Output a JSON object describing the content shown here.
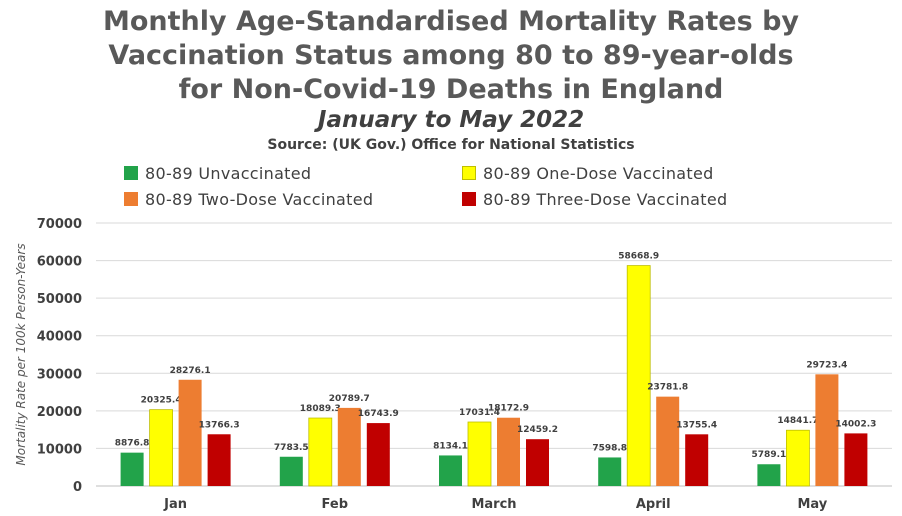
{
  "title_lines": [
    "Monthly Age-Standardised Mortality Rates by",
    "Vaccination Status among 80 to 89-year-olds",
    "for Non-Covid-19 Deaths in England"
  ],
  "subtitle": "January to May 2022",
  "source": "Source: (UK Gov.) Office for National Statistics",
  "colors": {
    "unvaccinated": "#22a34a",
    "one_dose": "#ffff00",
    "two_dose": "#ed7d31",
    "three_dose": "#c00000",
    "grid": "#d9d9d9",
    "axis_text": "#404040"
  },
  "chart_data": {
    "type": "bar",
    "title": "Monthly Age-Standardised Mortality Rates by Vaccination Status among 80 to 89-year-olds for Non-Covid-19 Deaths in England",
    "subtitle": "January to May 2022",
    "xlabel": "",
    "ylabel": "Mortality Rate per 100k Person-Years",
    "ylim": [
      0,
      70000
    ],
    "yticks": [
      "0",
      "10000",
      "20000",
      "30000",
      "40000",
      "50000",
      "60000",
      "70000"
    ],
    "categories": [
      "Jan",
      "Feb",
      "March",
      "April",
      "May"
    ],
    "grid": true,
    "legend_position": "top",
    "series": [
      {
        "name": "80-89 Unvaccinated",
        "color": "#22a34a",
        "values": [
          8876.8,
          7783.5,
          8134.1,
          7598.8,
          5789.1
        ],
        "labels": [
          "8876.8",
          "7783.5",
          "8134.1",
          "7598.8",
          "5789.1"
        ]
      },
      {
        "name": "80-89 One-Dose Vaccinated",
        "color": "#ffff00",
        "values": [
          20325.4,
          18089.3,
          17031.4,
          58668.9,
          14841.7
        ],
        "labels": [
          "20325.4",
          "18089.3",
          "17031.4",
          "58668.9",
          "14841.7"
        ]
      },
      {
        "name": "80-89 Two-Dose Vaccinated",
        "color": "#ed7d31",
        "values": [
          28276.1,
          20789.7,
          18172.9,
          23781.8,
          29723.4
        ],
        "labels": [
          "28276.1",
          "20789.7",
          "18172.9",
          "23781.8",
          "29723.4"
        ]
      },
      {
        "name": "80-89 Three-Dose Vaccinated",
        "color": "#c00000",
        "values": [
          13766.3,
          16743.9,
          12459.2,
          13755.4,
          14002.3
        ],
        "labels": [
          "13766.3",
          "16743.9",
          "12459.2",
          "13755.4",
          "14002.3"
        ]
      }
    ]
  }
}
